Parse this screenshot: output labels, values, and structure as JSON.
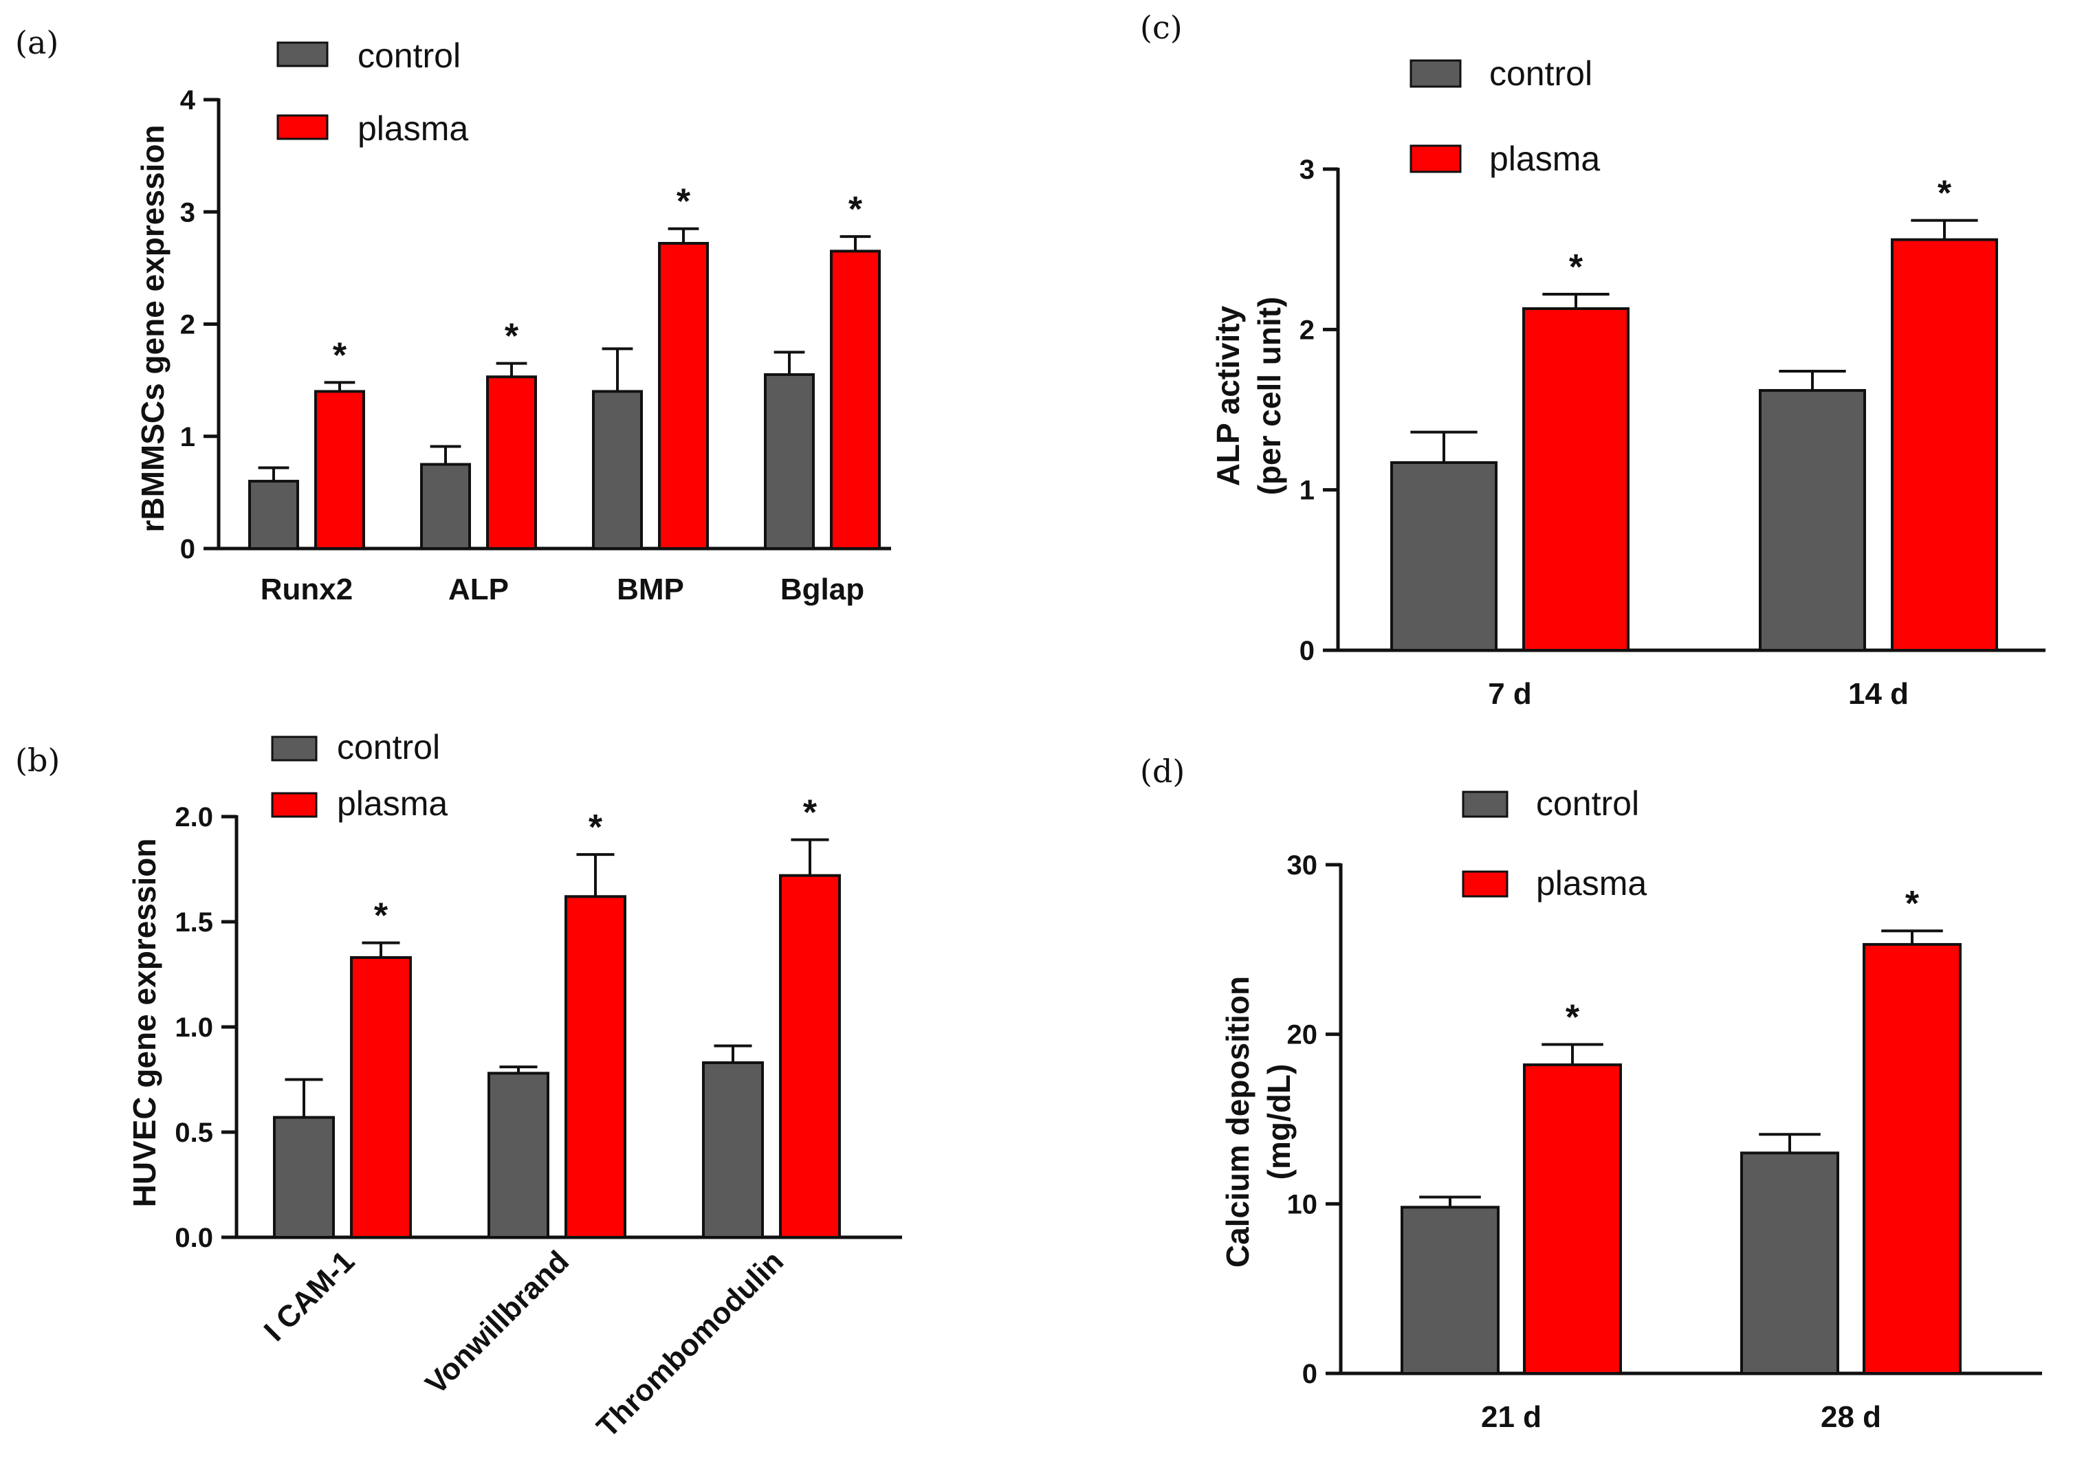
{
  "colors": {
    "control": "#5b5b5b",
    "plasma": "#ff0000",
    "axis": "#111111"
  },
  "legend": {
    "control_label": "control",
    "plasma_label": "plasma"
  },
  "chart_data": [
    {
      "id": "a",
      "panel_label": "(a)",
      "type": "bar",
      "ylabel": "rBMMSCs gene expression",
      "ylim": [
        0,
        4
      ],
      "yticks": [
        "0",
        "1",
        "2",
        "3",
        "4"
      ],
      "categories": [
        "Runx2",
        "ALP",
        "BMP",
        "Bglap"
      ],
      "series": [
        {
          "name": "control",
          "values": [
            0.6,
            0.75,
            1.4,
            1.55
          ],
          "errors": [
            0.12,
            0.16,
            0.38,
            0.2
          ]
        },
        {
          "name": "plasma",
          "values": [
            1.4,
            1.53,
            2.72,
            2.65
          ],
          "errors": [
            0.08,
            0.12,
            0.13,
            0.13
          ]
        }
      ],
      "annotations": [
        "*",
        "*",
        "*",
        "*"
      ]
    },
    {
      "id": "b",
      "panel_label": "(b)",
      "type": "bar",
      "ylabel": "HUVEC gene expression",
      "ylim": [
        0,
        2
      ],
      "yticks": [
        "0.0",
        "0.5",
        "1.0",
        "1.5",
        "2.0"
      ],
      "categories": [
        "I CAM-1",
        "Vonwillbrand",
        "Thrombomodulin"
      ],
      "series": [
        {
          "name": "control",
          "values": [
            0.57,
            0.78,
            0.83
          ],
          "errors": [
            0.18,
            0.03,
            0.08
          ]
        },
        {
          "name": "plasma",
          "values": [
            1.33,
            1.62,
            1.72
          ],
          "errors": [
            0.07,
            0.2,
            0.17
          ]
        }
      ],
      "annotations": [
        "*",
        "*",
        "*"
      ]
    },
    {
      "id": "c",
      "panel_label": "(c)",
      "type": "bar",
      "ylabel": "ALP activity",
      "ylabel2": "(per cell unit)",
      "ylim": [
        0,
        3
      ],
      "yticks": [
        "0",
        "1",
        "2",
        "3"
      ],
      "categories": [
        "7 d",
        "14 d"
      ],
      "series": [
        {
          "name": "control",
          "values": [
            1.17,
            1.62
          ],
          "errors": [
            0.19,
            0.12
          ]
        },
        {
          "name": "plasma",
          "values": [
            2.13,
            2.56
          ],
          "errors": [
            0.09,
            0.12
          ]
        }
      ],
      "annotations": [
        "*",
        "*"
      ]
    },
    {
      "id": "d",
      "panel_label": "(d)",
      "type": "bar",
      "ylabel": "Calcium deposition",
      "ylabel2": "(mg/dL)",
      "ylim": [
        0,
        30
      ],
      "yticks": [
        "0",
        "10",
        "20",
        "30"
      ],
      "categories": [
        "21 d",
        "28 d"
      ],
      "series": [
        {
          "name": "control",
          "values": [
            9.8,
            13.0
          ],
          "errors": [
            0.6,
            1.1
          ]
        },
        {
          "name": "plasma",
          "values": [
            18.2,
            25.3
          ],
          "errors": [
            1.2,
            0.8
          ]
        }
      ],
      "annotations": [
        "*",
        "*"
      ]
    }
  ]
}
